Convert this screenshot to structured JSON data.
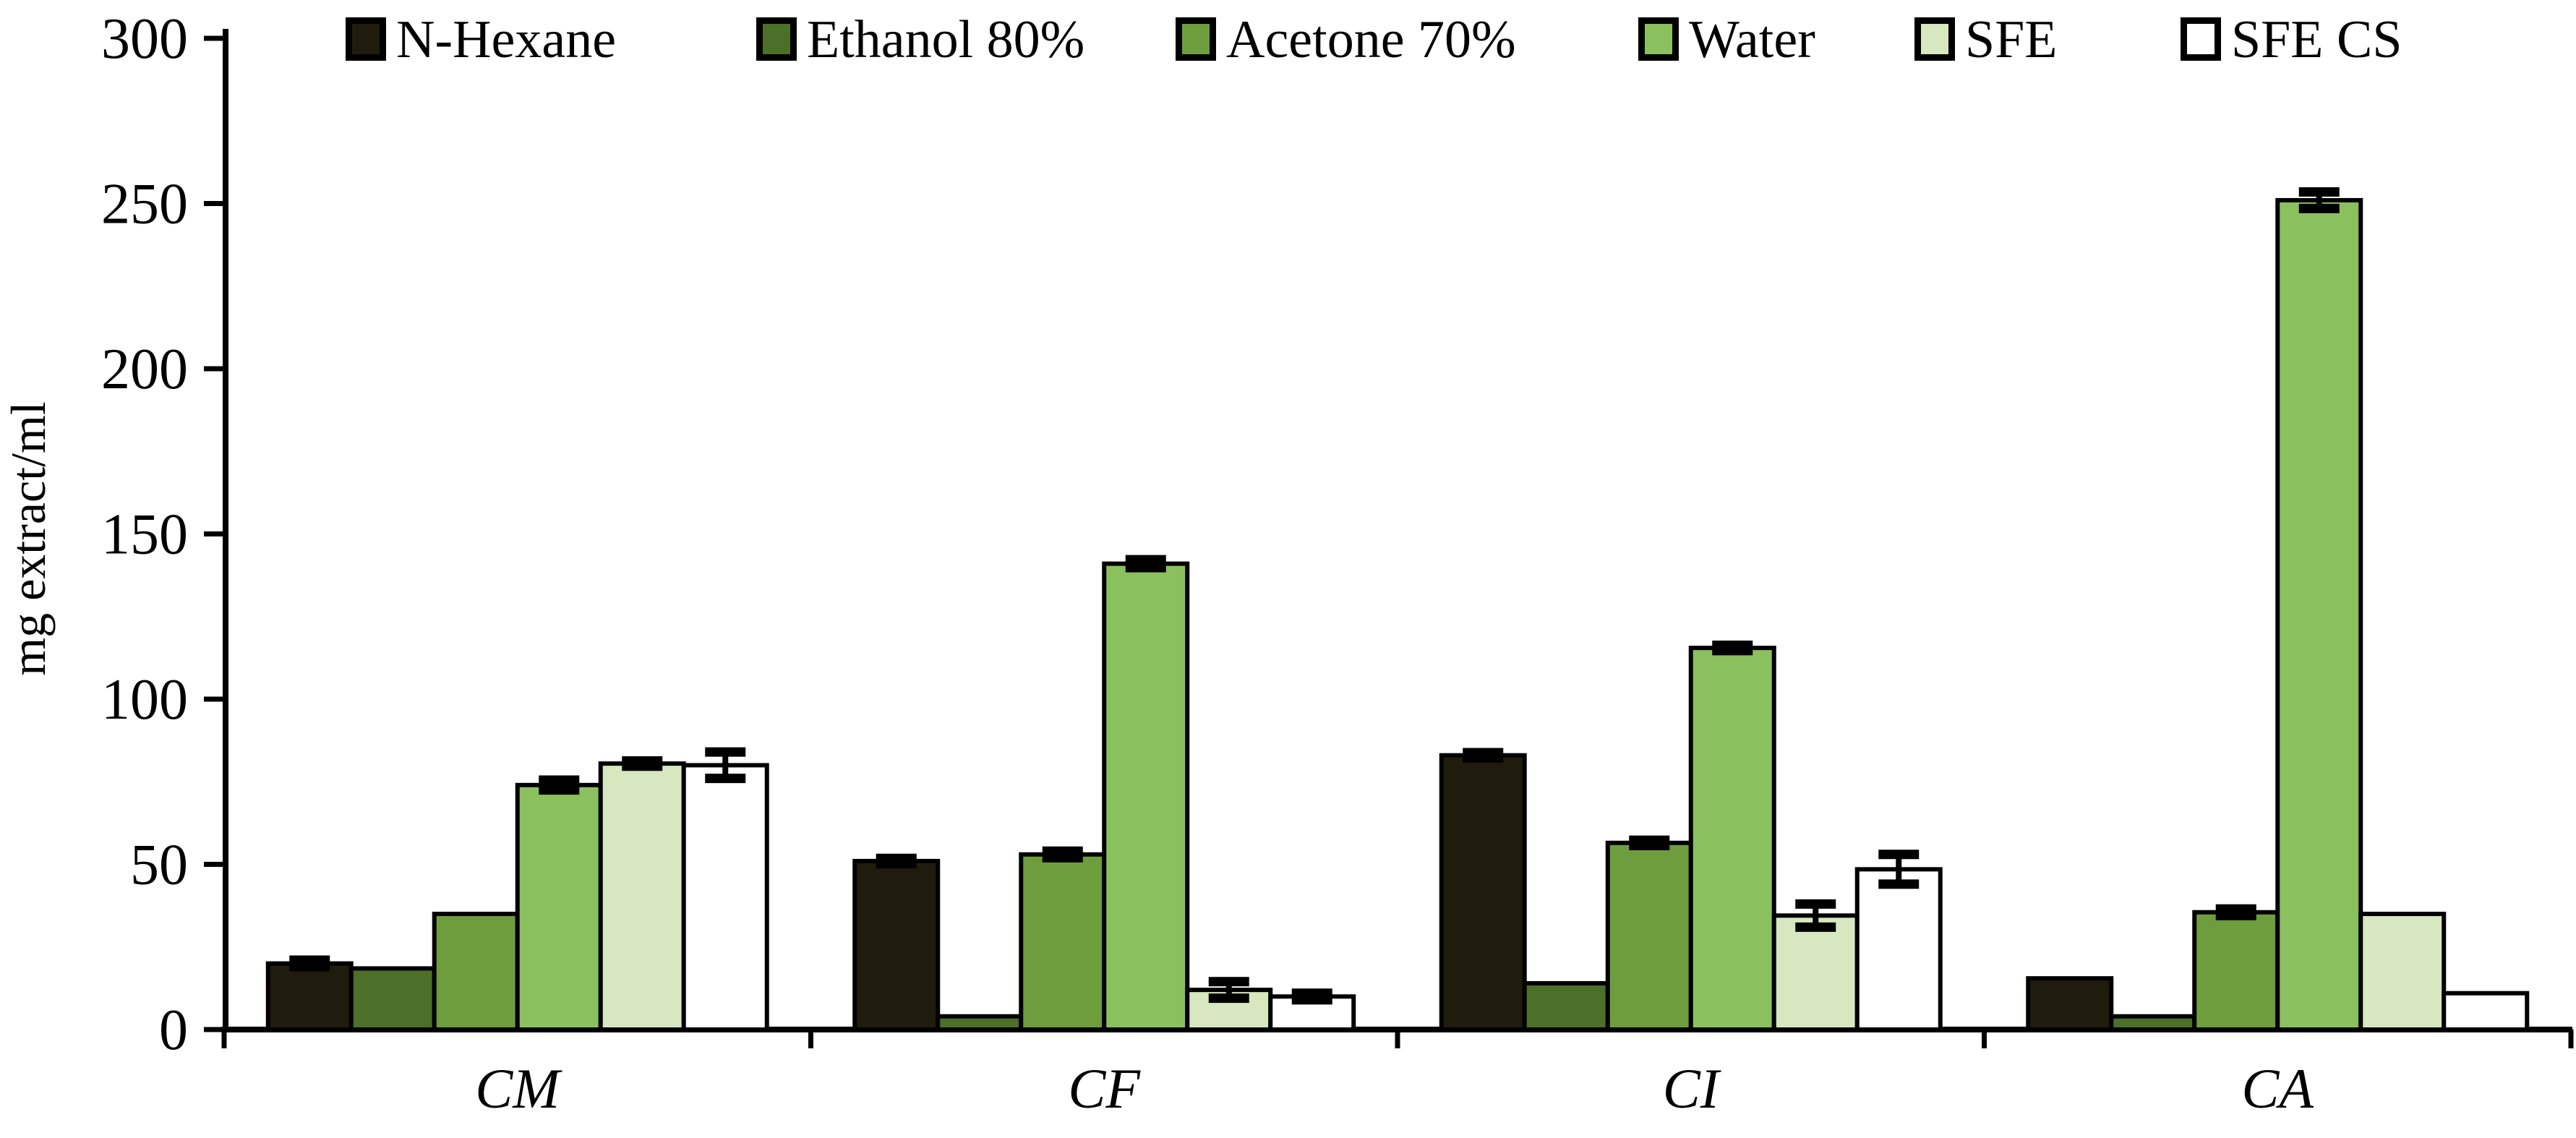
{
  "chart_data": {
    "type": "bar",
    "title": "",
    "ylabel": "mg extract/ml",
    "xlabel": "",
    "categories": [
      "CM",
      "CF",
      "CI",
      "CA"
    ],
    "series": [
      {
        "name": "N-Hexane",
        "color": "#1f1c0d",
        "values": [
          20,
          51,
          83,
          15.5
        ],
        "errors": [
          1,
          0.8,
          0.8,
          0
        ]
      },
      {
        "name": "Ethanol 80%",
        "color": "#4c6f2a",
        "values": [
          18.5,
          4,
          14,
          4
        ],
        "errors": [
          0,
          0,
          0,
          0
        ]
      },
      {
        "name": "Acetone 70%",
        "color": "#6e9d3e",
        "values": [
          35,
          53,
          56.5,
          35.5
        ],
        "errors": [
          0,
          1,
          0.8,
          1
        ]
      },
      {
        "name": "Water",
        "color": "#8bc05e",
        "values": [
          74,
          141,
          115.5,
          251
        ],
        "errors": [
          1.5,
          1.2,
          0.8,
          2.5
        ]
      },
      {
        "name": "SFE",
        "color": "#d7e7c0",
        "values": [
          80.5,
          12,
          34.5,
          35
        ],
        "errors": [
          0.8,
          2.5,
          3.5,
          0
        ]
      },
      {
        "name": "SFE CS",
        "color": "#ffffff",
        "values": [
          80,
          10,
          48.5,
          11
        ],
        "errors": [
          4,
          1,
          4.5,
          0
        ]
      }
    ],
    "ylim": [
      0,
      300
    ],
    "yticks": [
      0,
      50,
      100,
      150,
      200,
      250,
      300
    ],
    "grid": false,
    "legend_position": "top",
    "axis_color": "#000000"
  }
}
